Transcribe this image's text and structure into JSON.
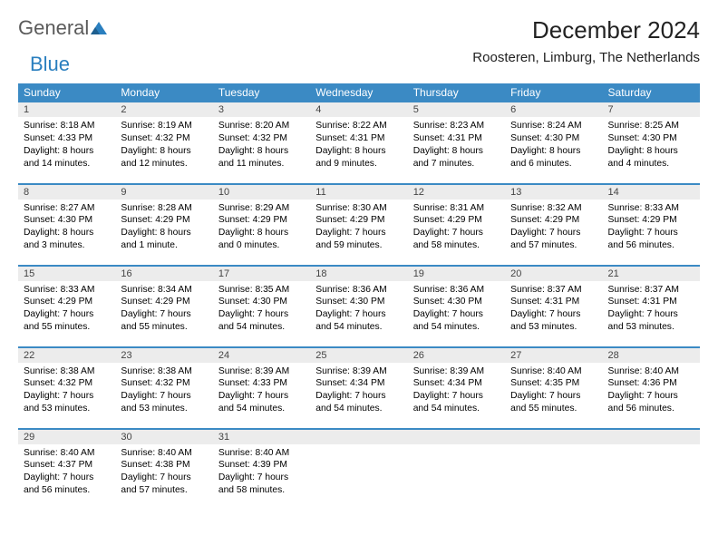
{
  "logo": {
    "text1": "General",
    "text2": "Blue"
  },
  "title": "December 2024",
  "location": "Roosteren, Limburg, The Netherlands",
  "colors": {
    "header_bg": "#3b8ac4",
    "header_text": "#ffffff",
    "daynum_bg": "#ececec",
    "border": "#3b8ac4",
    "logo_gray": "#5b5b5b",
    "logo_blue": "#2a7fbf"
  },
  "day_headers": [
    "Sunday",
    "Monday",
    "Tuesday",
    "Wednesday",
    "Thursday",
    "Friday",
    "Saturday"
  ],
  "days": [
    {
      "n": "1",
      "sunrise": "8:18 AM",
      "sunset": "4:33 PM",
      "daylight": "8 hours and 14 minutes."
    },
    {
      "n": "2",
      "sunrise": "8:19 AM",
      "sunset": "4:32 PM",
      "daylight": "8 hours and 12 minutes."
    },
    {
      "n": "3",
      "sunrise": "8:20 AM",
      "sunset": "4:32 PM",
      "daylight": "8 hours and 11 minutes."
    },
    {
      "n": "4",
      "sunrise": "8:22 AM",
      "sunset": "4:31 PM",
      "daylight": "8 hours and 9 minutes."
    },
    {
      "n": "5",
      "sunrise": "8:23 AM",
      "sunset": "4:31 PM",
      "daylight": "8 hours and 7 minutes."
    },
    {
      "n": "6",
      "sunrise": "8:24 AM",
      "sunset": "4:30 PM",
      "daylight": "8 hours and 6 minutes."
    },
    {
      "n": "7",
      "sunrise": "8:25 AM",
      "sunset": "4:30 PM",
      "daylight": "8 hours and 4 minutes."
    },
    {
      "n": "8",
      "sunrise": "8:27 AM",
      "sunset": "4:30 PM",
      "daylight": "8 hours and 3 minutes."
    },
    {
      "n": "9",
      "sunrise": "8:28 AM",
      "sunset": "4:29 PM",
      "daylight": "8 hours and 1 minute."
    },
    {
      "n": "10",
      "sunrise": "8:29 AM",
      "sunset": "4:29 PM",
      "daylight": "8 hours and 0 minutes."
    },
    {
      "n": "11",
      "sunrise": "8:30 AM",
      "sunset": "4:29 PM",
      "daylight": "7 hours and 59 minutes."
    },
    {
      "n": "12",
      "sunrise": "8:31 AM",
      "sunset": "4:29 PM",
      "daylight": "7 hours and 58 minutes."
    },
    {
      "n": "13",
      "sunrise": "8:32 AM",
      "sunset": "4:29 PM",
      "daylight": "7 hours and 57 minutes."
    },
    {
      "n": "14",
      "sunrise": "8:33 AM",
      "sunset": "4:29 PM",
      "daylight": "7 hours and 56 minutes."
    },
    {
      "n": "15",
      "sunrise": "8:33 AM",
      "sunset": "4:29 PM",
      "daylight": "7 hours and 55 minutes."
    },
    {
      "n": "16",
      "sunrise": "8:34 AM",
      "sunset": "4:29 PM",
      "daylight": "7 hours and 55 minutes."
    },
    {
      "n": "17",
      "sunrise": "8:35 AM",
      "sunset": "4:30 PM",
      "daylight": "7 hours and 54 minutes."
    },
    {
      "n": "18",
      "sunrise": "8:36 AM",
      "sunset": "4:30 PM",
      "daylight": "7 hours and 54 minutes."
    },
    {
      "n": "19",
      "sunrise": "8:36 AM",
      "sunset": "4:30 PM",
      "daylight": "7 hours and 54 minutes."
    },
    {
      "n": "20",
      "sunrise": "8:37 AM",
      "sunset": "4:31 PM",
      "daylight": "7 hours and 53 minutes."
    },
    {
      "n": "21",
      "sunrise": "8:37 AM",
      "sunset": "4:31 PM",
      "daylight": "7 hours and 53 minutes."
    },
    {
      "n": "22",
      "sunrise": "8:38 AM",
      "sunset": "4:32 PM",
      "daylight": "7 hours and 53 minutes."
    },
    {
      "n": "23",
      "sunrise": "8:38 AM",
      "sunset": "4:32 PM",
      "daylight": "7 hours and 53 minutes."
    },
    {
      "n": "24",
      "sunrise": "8:39 AM",
      "sunset": "4:33 PM",
      "daylight": "7 hours and 54 minutes."
    },
    {
      "n": "25",
      "sunrise": "8:39 AM",
      "sunset": "4:34 PM",
      "daylight": "7 hours and 54 minutes."
    },
    {
      "n": "26",
      "sunrise": "8:39 AM",
      "sunset": "4:34 PM",
      "daylight": "7 hours and 54 minutes."
    },
    {
      "n": "27",
      "sunrise": "8:40 AM",
      "sunset": "4:35 PM",
      "daylight": "7 hours and 55 minutes."
    },
    {
      "n": "28",
      "sunrise": "8:40 AM",
      "sunset": "4:36 PM",
      "daylight": "7 hours and 56 minutes."
    },
    {
      "n": "29",
      "sunrise": "8:40 AM",
      "sunset": "4:37 PM",
      "daylight": "7 hours and 56 minutes."
    },
    {
      "n": "30",
      "sunrise": "8:40 AM",
      "sunset": "4:38 PM",
      "daylight": "7 hours and 57 minutes."
    },
    {
      "n": "31",
      "sunrise": "8:40 AM",
      "sunset": "4:39 PM",
      "daylight": "7 hours and 58 minutes."
    }
  ],
  "labels": {
    "sunrise": "Sunrise:",
    "sunset": "Sunset:",
    "daylight": "Daylight:"
  }
}
